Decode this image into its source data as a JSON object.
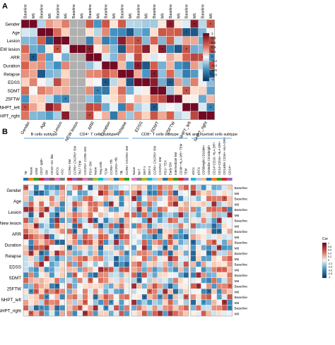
{
  "panels": {
    "a": {
      "letter": "A",
      "col_groups": [
        "Gender",
        "Age",
        "Lesion",
        "NEW lesion",
        "ARR",
        "Duration",
        "Relapse",
        "EDSS",
        "SDMT",
        "25FTW",
        "NHPT_left",
        "NHPT_right"
      ],
      "col_sub": [
        "Baseline",
        "M6"
      ],
      "rows": [
        "Gender",
        "Age",
        "Lesion",
        "NEW lesion",
        "ARR",
        "Duration",
        "Relapse",
        "EDSS",
        "SDMT",
        "25FTW",
        "NHPT_left",
        "NHPT_right"
      ],
      "bottom_labels": [
        "Gender",
        "Age",
        "Lesion",
        "NEW lesion",
        "ARR",
        "Duration",
        "Relapse",
        "EDSS",
        "SDMT",
        "25FTW",
        "NHPT_left",
        "NHPT_right"
      ],
      "legend_ticks": [
        "1",
        "0.8",
        "0.6",
        "0.4",
        "0.2",
        "0",
        "-0.2",
        "-0.4",
        "-0.6",
        "-0.8",
        "-1"
      ]
    },
    "b": {
      "letter": "B",
      "group_titles": [
        "B cells subtype",
        "CD4⁺ T cells subtype",
        "CD8⁺ T cells subtype",
        "NK and myeloid cells subtype"
      ],
      "group_colors": [
        "#6fa8dc",
        "#6fa8dc",
        "#6fa8dc",
        "#6fa8dc"
      ],
      "columns": [
        [
          "TB",
          "Naive",
          "USW",
          "CD27- IgM+",
          "SW",
          "CD10+ GC like",
          "pDCs",
          "ASC"
        ],
        [
          "CCR6+ EM",
          "CCR6+ CXCR3+ EM",
          "Th17 TEM",
          "CXCR3+ CCR6- EM",
          "PD1+ EM",
          "Naive",
          "Treg cells",
          "TCM",
          "CCR6+ Tfh",
          "CXCR3+ Tfh",
          "Tfh",
          "CCR6+ CXCR3+ EM"
        ],
        [
          "Naive",
          "NKT",
          "DNT-1",
          "DNT-2",
          "CCR6+ CXCR3+ EM",
          "CXCR3+ EM",
          "PD1+ TEX",
          "Early EM",
          "Intermediate EM",
          "CD38+ HLA-DR+ TEM",
          "TEM"
        ],
        [
          "cDCs",
          "pDCs",
          "CD56bright CD16dim",
          "CD56dim CD16bright",
          "CD14+CD16- HLA-DR+",
          "CD14+CD16+ HLA-DR+",
          "CD14dim CD16+ HLA-DR+",
          "CD14+"
        ]
      ],
      "rows": [
        "Gender",
        "Age",
        "Lesion",
        "New lesion",
        "ARR",
        "Duration",
        "Relapse",
        "EDSS",
        "SDMT",
        "25FTW",
        "NHPT_left",
        "NHPT_right"
      ],
      "row_sub": [
        "Baseline",
        "M6"
      ],
      "legend_title": "Cor",
      "legend_ticks": [
        "1",
        "0.8",
        "0.6",
        "0.4",
        "0.2",
        "0",
        "-0.2",
        "-0.4",
        "-0.6",
        "-0.8",
        "-1"
      ]
    }
  },
  "colors": {
    "pos": "#a50f15",
    "neg": "#08519c",
    "mid": "#ffffff",
    "line": "#5b9bd5"
  },
  "icons": [
    "significance-star-icon"
  ]
}
